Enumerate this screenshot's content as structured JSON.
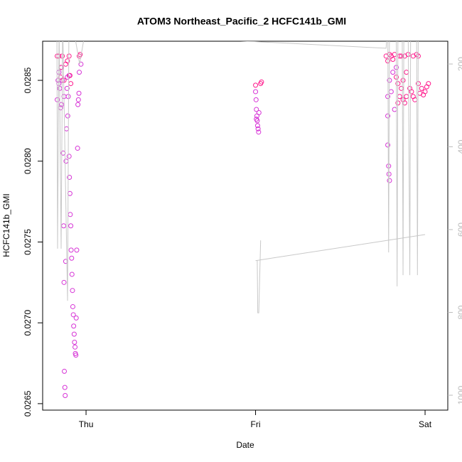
{
  "chart_data": {
    "type": "scatter",
    "title": "ATOM3 Northeast_Pacific_2 HCFC141b_GMI",
    "xlabel": "Date",
    "ylabel": "HCFC141b_GMI",
    "xlim": [
      -0.256,
      2.134
    ],
    "xticks": [
      {
        "value": 0,
        "label": "Thu"
      },
      {
        "value": 1,
        "label": "Fri"
      },
      {
        "value": 2,
        "label": "Sat"
      }
    ],
    "ylim": [
      0.02646,
      0.028742
    ],
    "yticks": [
      0.0265,
      {
        "value": 0.027,
        "label": "0.0270"
      },
      0.0275,
      {
        "value": 0.028,
        "label": "0.0280"
      },
      0.0285
    ],
    "y2lim": [
      1036,
      145
    ],
    "y2ticks": [
      200,
      400,
      600,
      800,
      1000
    ],
    "series": [
      {
        "color": "#d633d6",
        "x": [
          -0.17,
          -0.165,
          -0.16,
          -0.155,
          -0.15,
          -0.148,
          -0.145,
          -0.14,
          -0.135,
          -0.132,
          -0.13,
          -0.128,
          -0.125,
          -0.123,
          -0.12,
          -0.118,
          -0.115,
          -0.112,
          -0.108,
          -0.105,
          -0.1,
          -0.098,
          -0.095,
          -0.093,
          -0.09,
          -0.088,
          -0.085,
          -0.083,
          -0.08,
          -0.078,
          -0.075,
          -0.073,
          -0.07,
          -0.068,
          -0.065,
          -0.063,
          -0.06,
          -0.058,
          -0.055,
          -0.05,
          -0.048,
          -0.045,
          -0.042,
          -0.04,
          -0.03,
          -0.1,
          -0.11,
          -0.16,
          -0.13,
          1.0,
          1.003,
          1.005,
          1.008,
          1.01,
          1.012,
          1.015,
          1.018,
          1.02,
          1.005,
          1.78,
          1.78,
          1.785,
          1.787,
          1.79,
          1.78,
          1.79,
          1.8,
          1.81,
          1.82,
          1.83
        ],
        "values": [
          0.02838,
          0.0285,
          0.02855,
          0.02845,
          0.02833,
          0.02858,
          0.02835,
          0.0285,
          0.02805,
          0.0276,
          0.02725,
          0.0267,
          0.0266,
          0.02655,
          0.02738,
          0.028,
          0.0282,
          0.02845,
          0.02828,
          0.0284,
          0.02803,
          0.0279,
          0.0278,
          0.02767,
          0.0276,
          0.02745,
          0.0274,
          0.0273,
          0.0272,
          0.0271,
          0.02705,
          0.02698,
          0.02693,
          0.02688,
          0.02685,
          0.02681,
          0.0268,
          0.02703,
          0.02745,
          0.02808,
          0.02835,
          0.02838,
          0.02842,
          0.02855,
          0.0286,
          0.02853,
          0.02852,
          0.02848,
          0.0284,
          0.02843,
          0.02838,
          0.02832,
          0.02828,
          0.02825,
          0.02822,
          0.0282,
          0.02818,
          0.0283,
          0.02826,
          0.02828,
          0.0281,
          0.02797,
          0.02792,
          0.02788,
          0.0284,
          0.0285,
          0.02843,
          0.02855,
          0.02832,
          0.02858
        ]
      },
      {
        "color": "#ff1a8c",
        "x": [
          -0.17,
          -0.16,
          -0.14,
          -0.13,
          -0.12,
          -0.11,
          -0.1,
          -0.095,
          -0.09,
          -0.04,
          -0.035,
          -0.15,
          -0.145,
          1.03,
          1.035,
          1.0,
          1.77,
          1.78,
          1.79,
          1.8,
          1.81,
          1.82,
          1.83,
          1.84,
          1.85,
          1.86,
          1.87,
          1.88,
          1.89,
          1.9,
          1.91,
          1.92,
          1.93,
          1.94,
          1.95,
          1.96,
          1.97,
          1.98,
          1.99,
          2.0,
          2.01,
          2.02,
          1.86,
          1.88,
          1.84,
          1.87,
          1.93,
          1.96,
          1.89,
          1.85
        ],
        "values": [
          0.02865,
          0.02865,
          0.02865,
          0.0285,
          0.0286,
          0.02862,
          0.02865,
          0.02853,
          0.02848,
          0.02865,
          0.02866,
          0.02852,
          0.02858,
          0.02848,
          0.02849,
          0.02847,
          0.02865,
          0.02862,
          0.02866,
          0.02865,
          0.02863,
          0.02866,
          0.02852,
          0.02848,
          0.02865,
          0.02845,
          0.02838,
          0.02836,
          0.0284,
          0.02866,
          0.02845,
          0.02843,
          0.0284,
          0.02838,
          0.02866,
          0.02848,
          0.02842,
          0.02845,
          0.02841,
          0.02843,
          0.02846,
          0.02848,
          0.02865,
          0.02865,
          0.02836,
          0.0285,
          0.02865,
          0.02865,
          0.02855,
          0.0284
        ]
      },
      {
        "color": "#c8c8c8",
        "axis": "y2",
        "x": [
          -0.172,
          -0.168,
          -0.159,
          -0.147,
          -0.138,
          -0.109,
          -0.101,
          -0.08,
          -0.038,
          0.004,
          null,
          1.0,
          2.0,
          null,
          1.01,
          1.013,
          1.019,
          1.03,
          null,
          0.71,
          1.77,
          1.78,
          1.785,
          1.79,
          1.8,
          1.83,
          1.835,
          1.84,
          1.865,
          1.87,
          1.875,
          1.9,
          1.91,
          1.915,
          1.93,
          1.95,
          1.955,
          1.96
        ],
        "values": [
          100,
          646,
          100,
          646,
          100,
          772,
          100,
          100,
          200,
          100,
          null,
          675,
          612,
          null,
          675,
          801,
          801,
          626,
          null,
          140,
          162,
          100,
          655,
          100,
          100,
          100,
          737,
          100,
          100,
          710,
          100,
          100,
          710,
          100,
          100,
          100,
          710,
          100
        ]
      }
    ]
  }
}
